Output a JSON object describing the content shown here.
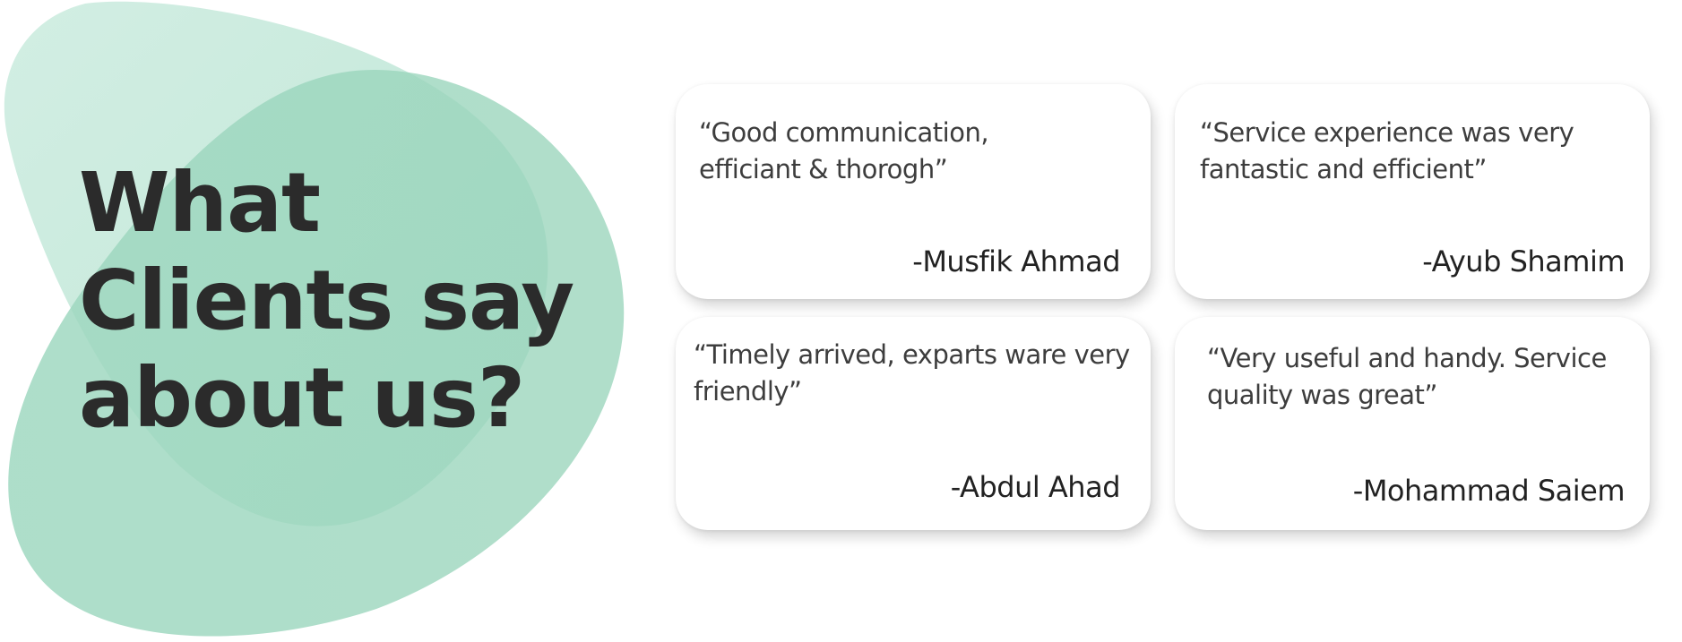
{
  "heading": {
    "line1": "What",
    "line2": "Clients say",
    "line3": "about us?"
  },
  "colors": {
    "blob_light": "#c9eadd",
    "blob_mid": "#a8dcc6",
    "blob_dark": "#8dcfb3",
    "heading_text": "#2b2b2b",
    "card_background": "#ffffff"
  },
  "testimonials": [
    {
      "quote_line1": "“Good communication,",
      "quote_line2": "efficiant & thorogh”",
      "author": "-Musfik Ahmad"
    },
    {
      "quote_line1": "“Service experience was very",
      "quote_line2": "fantastic and efficient”",
      "author": "-Ayub Shamim"
    },
    {
      "quote_line1": "“Timely arrived, exparts ware very",
      "quote_line2": "friendly”",
      "author": "-Abdul Ahad"
    },
    {
      "quote_line1": "“Very useful and handy. Service",
      "quote_line2": "quality was great”",
      "author": "-Mohammad Saiem"
    }
  ]
}
